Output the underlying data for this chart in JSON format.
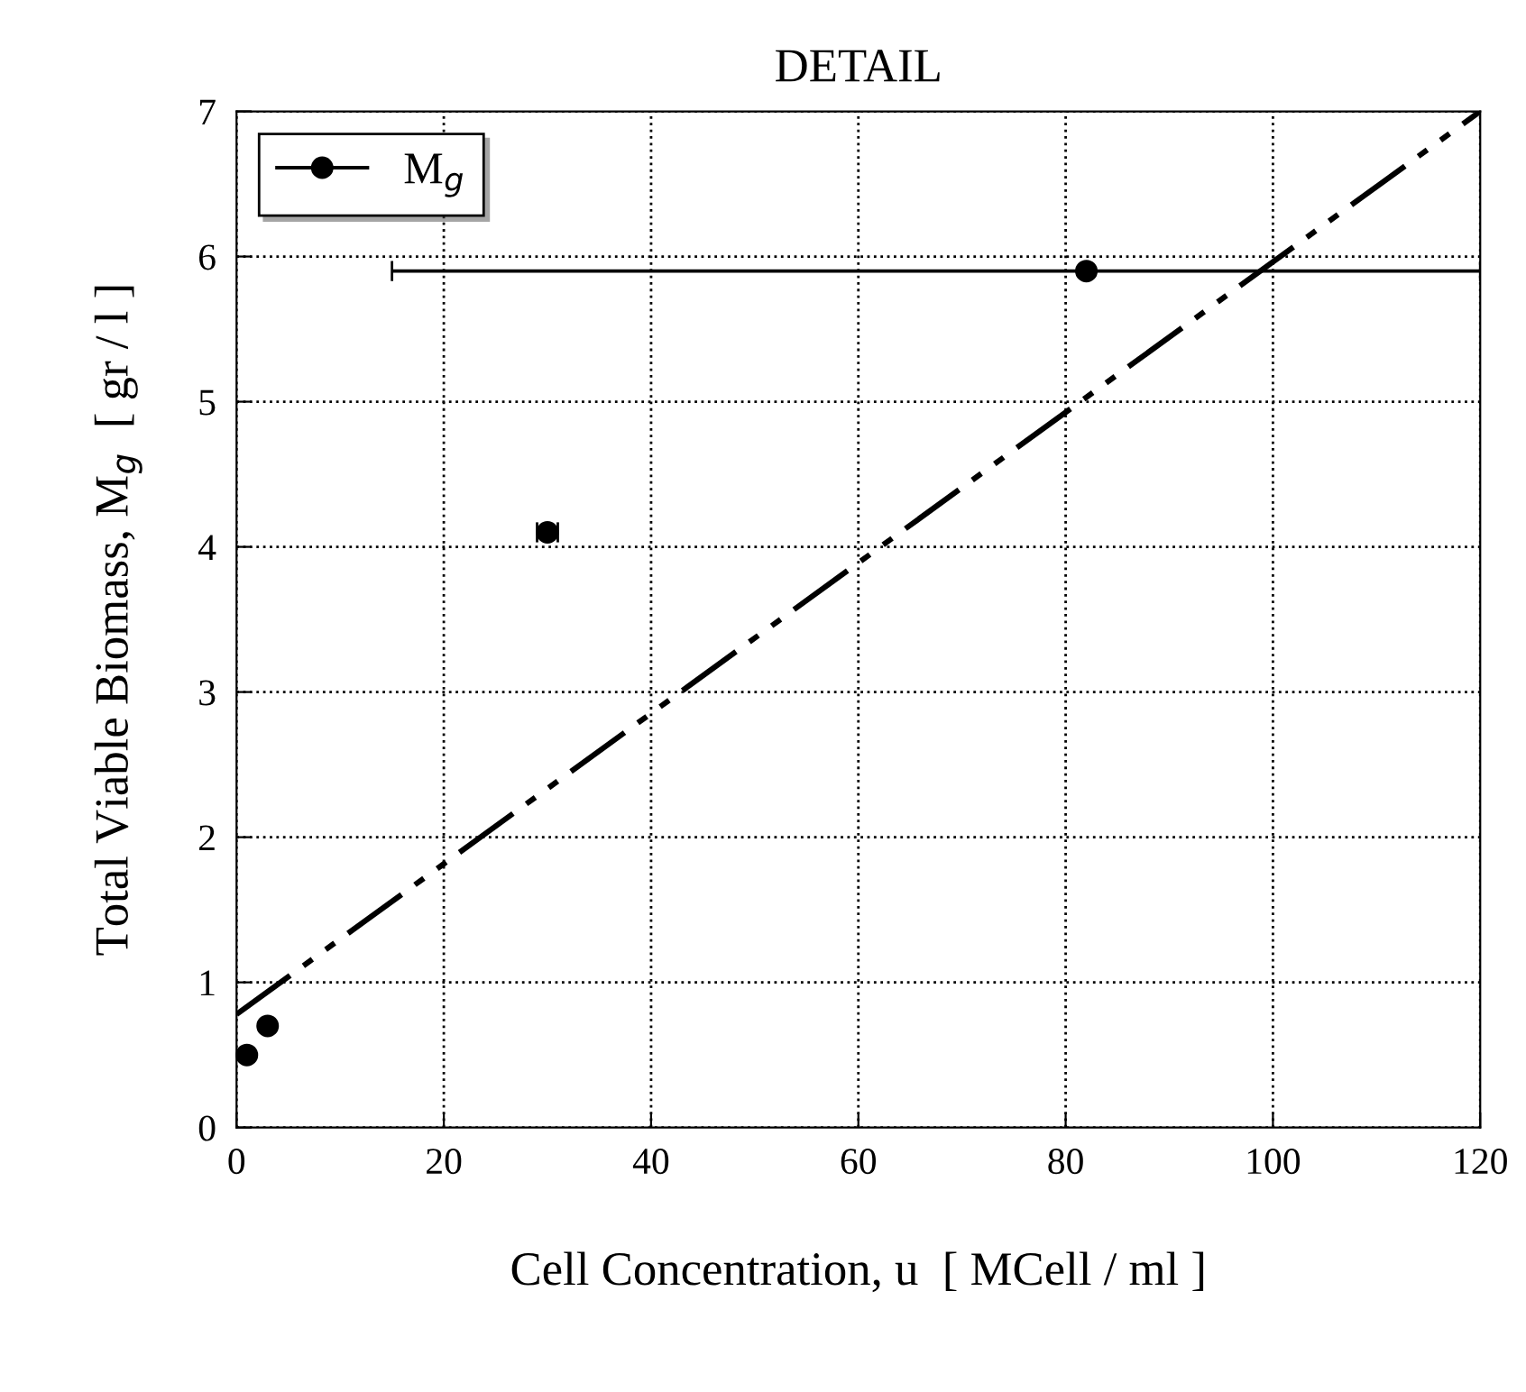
{
  "chart_data": {
    "type": "scatter",
    "title": "DETAIL",
    "xlabel": "Cell Concentration, u  [ MCell / ml ]",
    "ylabel": "Total Viable Biomass, M$_{g}$  [ gr / l ]",
    "series": [
      {
        "name": "M$_{g}$",
        "color": "#000000",
        "x": [
          1,
          3,
          30,
          82
        ],
        "values": [
          0.5,
          0.7,
          4.1,
          5.9
        ],
        "xerrors": [
          null,
          null,
          [
            29,
            31
          ],
          [
            15,
            120
          ]
        ],
        "marker": "circle"
      },
      {
        "type": "line",
        "color": "#000000",
        "x": [
          0,
          120
        ],
        "values": [
          0.78,
          7.0
        ],
        "line_style": "dashed",
        "marker": "none"
      }
    ],
    "xlim": [
      0,
      120
    ],
    "ylim": [
      0,
      7
    ],
    "xticks": [
      0,
      20,
      40,
      60,
      80,
      100,
      120
    ],
    "yticks": [
      0,
      1,
      2,
      3,
      4,
      5,
      6,
      7
    ],
    "grid": true,
    "legend": "top left"
  }
}
